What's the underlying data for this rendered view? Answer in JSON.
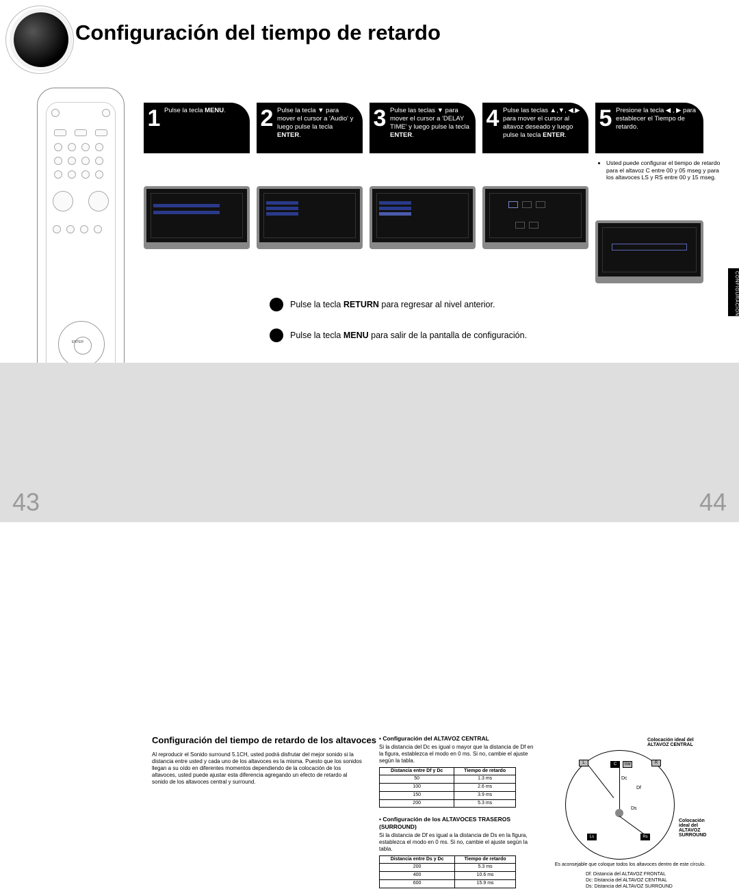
{
  "title": "Configuración del tiempo de retardo",
  "sideTab": "CONFIGURACIÓN",
  "pageLeft": "43",
  "pageRight": "44",
  "steps": [
    {
      "num": "1",
      "text": "Pulse la tecla <b>MENU</b>."
    },
    {
      "num": "2",
      "text": "Pulse la tecla ▼ para mover el cursor a 'Audio' y luego pulse la tecla <b>ENTER</b>."
    },
    {
      "num": "3",
      "text": "Pulse las teclas ▼ para mover el cursor a 'DELAY TIME' y luego pulse la tecla <b>ENTER</b>."
    },
    {
      "num": "4",
      "text": "Pulse las teclas ▲,▼, ◀,▶ para mover el cursor al altavoz deseado y luego pulse la tecla <b>ENTER</b>."
    },
    {
      "num": "5",
      "text": "Presione la tecla ◀ , ▶ para establecer el Tiempo de retardo."
    }
  ],
  "note5": "Usted puede configurar el tiempo de retardo para el altavoz C entre 00 y 05 mseg y para los altavoces LS y RS entre 00 y 15 mseg.",
  "bullets": [
    "Pulse la tecla <b>RETURN</b> para regresar al nivel anterior.",
    "Pulse la tecla <b>MENU</b> para salir de la pantalla de configuración."
  ],
  "section": {
    "title": "Configuración del tiempo de retardo de los altavoces",
    "body": "Al reproducir el Sonido surround 5.1CH, usted podrá disfrutar del mejor sonido si la distancia entre usted y cada uno de los altavoces es la misma. Puesto que los sonidos llegan a su oído en diferentes momentos dependiendo de la colocación de los altavoces, usted puede ajustar esta diferencia agregando un efecto de retardo al sonido de los altavoces central y surround."
  },
  "central": {
    "heading": "• Configuración del ALTAVOZ CENTRAL",
    "body": "Si la distancia del Dc es igual o mayor que la distancia de Df en la figura, establezca el modo en 0 ms. Si no, cambie el ajuste según la tabla.",
    "tbl": {
      "h1": "Distancia entre Df y Dc",
      "h2": "Tiempo de retardo",
      "rows": [
        [
          "50",
          "1.3 ms"
        ],
        [
          "100",
          "2.6 ms"
        ],
        [
          "150",
          "3.9 ms"
        ],
        [
          "200",
          "5.3 ms"
        ]
      ]
    }
  },
  "surround": {
    "heading": "• Configuración de los ALTAVOCES TRASEROS (SURROUND)",
    "body": "Si la distancia de Df es igual a la distancia de Ds en la figura, establezca el modo en 0 ms. Si no, cambie el ajuste según la tabla.",
    "tbl": {
      "h1": "Distancia entre Ds y Dc",
      "h2": "Tiempo de retardo",
      "rows": [
        [
          "200",
          "5.3 ms"
        ],
        [
          "400",
          "10.6 ms"
        ],
        [
          "600",
          "15.9 ms"
        ]
      ]
    }
  },
  "diagram": {
    "idealC": "Colocación ideal del\nALTAVOZ CENTRAL",
    "idealS": "Colocación\nideal del\nALTAVOZ\nSURROUND",
    "foot": "Es aconsejable que coloque todos los altavoces dentro de este círculo.",
    "legend": [
      "Df: Distancia del ALTAVOZ FRONTAL",
      "Dc: Distancia del ALTAVOZ CENTRAL",
      "Ds: Distancia del ALTAVOZ SURROUND"
    ],
    "nodes": {
      "L": "L",
      "C": "C",
      "SW": "SW",
      "R": "R",
      "Ls": "Ls",
      "Rs": "Rs",
      "Dc": "Dc",
      "Df": "Df",
      "Ds": "Ds"
    }
  }
}
